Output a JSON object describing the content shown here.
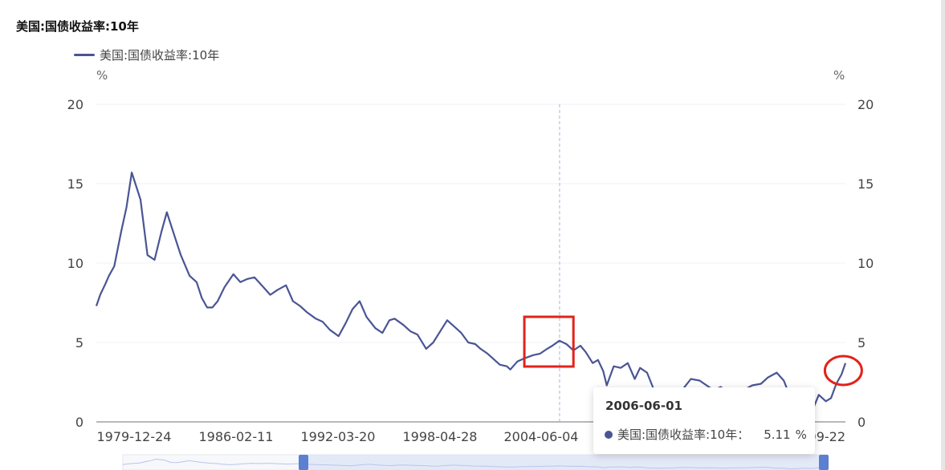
{
  "title": "美国:国债收益率:10年",
  "legend_label": "美国:国债收益率:10年",
  "unit_left": "%",
  "unit_right": "%",
  "colors": {
    "series": "#4a5594",
    "highlight_box": "#e2231a",
    "highlight_circle": "#e2231a",
    "grid": "#eef0f5",
    "axis": "#6e7079",
    "crosshair": "#a9b4de",
    "zoom_fill": "#dbe3f6",
    "zoom_handle": "#5b7fd1"
  },
  "tooltip": {
    "date": "2006-06-01",
    "series_label": "美国:国债收益率:10年：",
    "value": "5.11",
    "unit": "%"
  },
  "chart_data": {
    "type": "line",
    "title": "美国:国债收益率:10年",
    "xlabel": "",
    "ylabel": "%",
    "ylim": [
      0,
      20
    ],
    "yticks": [
      0,
      5,
      10,
      15,
      20
    ],
    "grid": true,
    "legend": "top-left",
    "x_tick_labels": [
      "1979-12-24",
      "1986-02-11",
      "1992-03-20",
      "1998-04-28",
      "2004-06-04",
      "2022-09-22"
    ],
    "series": [
      {
        "name": "美国:国债收益率:10年",
        "x": [
          1979.98,
          1980.2,
          1980.5,
          1980.7,
          1981.0,
          1981.4,
          1981.7,
          1982.0,
          1982.5,
          1982.9,
          1983.3,
          1983.7,
          1984.0,
          1984.5,
          1984.8,
          1985.3,
          1985.7,
          1986.0,
          1986.3,
          1986.6,
          1986.9,
          1987.3,
          1987.8,
          1988.2,
          1988.6,
          1989.0,
          1989.5,
          1989.9,
          1990.3,
          1990.8,
          1991.2,
          1991.6,
          1992.0,
          1992.5,
          1992.9,
          1993.3,
          1993.8,
          1994.2,
          1994.6,
          1995.0,
          1995.4,
          1995.9,
          1996.3,
          1996.7,
          1997.0,
          1997.5,
          1997.9,
          1998.3,
          1998.8,
          1999.2,
          1999.6,
          2000.0,
          2000.4,
          2000.8,
          2001.2,
          2001.6,
          2001.9,
          2002.3,
          2002.7,
          2003.0,
          2003.4,
          2003.6,
          2004.0,
          2004.4,
          2004.9,
          2005.3,
          2005.7,
          2006.0,
          2006.4,
          2006.8,
          2007.2,
          2007.6,
          2007.9,
          2008.3,
          2008.6,
          2008.9,
          2009.1,
          2009.5,
          2009.9,
          2010.3,
          2010.7,
          2011.0,
          2011.4,
          2011.8,
          2012.3,
          2012.6,
          2013.0,
          2013.4,
          2013.9,
          2014.4,
          2014.8,
          2015.2,
          2015.6,
          2016.0,
          2016.5,
          2016.9,
          2017.4,
          2017.9,
          2018.3,
          2018.8,
          2019.2,
          2019.6,
          2020.0,
          2020.3,
          2020.6,
          2020.9,
          2021.2,
          2021.6,
          2021.9,
          2022.2,
          2022.5,
          2022.72
        ],
        "values": [
          7.3,
          8.0,
          8.7,
          9.2,
          9.8,
          12.0,
          13.5,
          15.7,
          14.0,
          10.5,
          10.2,
          12.0,
          13.2,
          11.5,
          10.5,
          9.2,
          8.8,
          7.8,
          7.2,
          7.2,
          7.6,
          8.5,
          9.3,
          8.8,
          9.0,
          9.1,
          8.5,
          8.0,
          8.3,
          8.6,
          7.6,
          7.3,
          6.9,
          6.5,
          6.3,
          5.8,
          5.4,
          6.2,
          7.1,
          7.6,
          6.6,
          5.9,
          5.6,
          6.4,
          6.5,
          6.1,
          5.7,
          5.5,
          4.6,
          5.0,
          5.7,
          6.4,
          6.0,
          5.6,
          5.0,
          4.9,
          4.6,
          4.3,
          3.9,
          3.6,
          3.5,
          3.3,
          3.8,
          4.0,
          4.2,
          4.3,
          4.6,
          4.8,
          5.11,
          4.9,
          4.5,
          4.8,
          4.4,
          3.7,
          3.9,
          3.2,
          2.3,
          3.5,
          3.4,
          3.7,
          2.7,
          3.4,
          3.1,
          2.0,
          1.7,
          1.6,
          1.9,
          2.0,
          2.7,
          2.6,
          2.3,
          2.0,
          2.2,
          1.9,
          1.5,
          2.0,
          2.3,
          2.4,
          2.8,
          3.1,
          2.6,
          1.5,
          1.8,
          0.7,
          0.6,
          0.9,
          1.7,
          1.3,
          1.5,
          2.4,
          3.0,
          3.7
        ]
      }
    ],
    "crosshair_x": 2006.41,
    "highlight_box_x": [
      2004.4,
      2007.2
    ],
    "highlight_circle_x": 2022.6
  }
}
